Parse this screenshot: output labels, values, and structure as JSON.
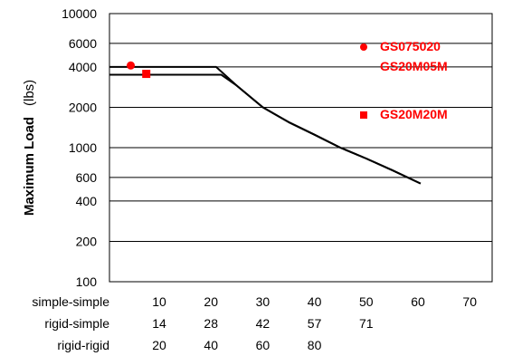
{
  "chart_data": {
    "type": "line",
    "ylabel": "Maximum Load",
    "yunit": "(lbs)",
    "yscale": "log",
    "ylim": [
      100,
      10000
    ],
    "y_ticks": [
      100,
      200,
      400,
      600,
      1000,
      2000,
      4000,
      6000,
      10000
    ],
    "y_tick_labels": [
      "100",
      "200",
      "400",
      "600",
      "1000",
      "2000",
      "4000",
      "6000",
      "10000"
    ],
    "xlim": [
      0,
      80
    ],
    "x_ticks": [
      10,
      20,
      30,
      40,
      50,
      60,
      70
    ],
    "x_scales": [
      {
        "label": "simple-simple",
        "ticks": [
          "10",
          "20",
          "30",
          "40",
          "50",
          "60",
          "70"
        ]
      },
      {
        "label": "rigid-simple",
        "ticks": [
          "14",
          "28",
          "42",
          "57",
          "71"
        ]
      },
      {
        "label": "rigid-rigid",
        "ticks": [
          "20",
          "40",
          "60",
          "80"
        ]
      }
    ],
    "series": [
      {
        "name": "GS075020 GS20M05M",
        "marker": "circle",
        "color": "#ff0000",
        "x": [
          0,
          21.0,
          25,
          30,
          35,
          40,
          45,
          50,
          55,
          60.5
        ],
        "y": [
          4000,
          4000,
          2900,
          2000,
          1550,
          1250,
          1000,
          830,
          680,
          540
        ],
        "marker_point": {
          "x": 4.5,
          "y": 4100
        }
      },
      {
        "name": "GS20M20M",
        "marker": "square",
        "color": "#ff0000",
        "x": [
          0,
          22.0,
          25,
          30,
          35,
          40,
          45,
          50,
          55,
          60.5
        ],
        "y": [
          3500,
          3500,
          2900,
          2000,
          1550,
          1250,
          1000,
          830,
          680,
          540
        ],
        "marker_point": {
          "x": 7.5,
          "y": 3550
        }
      }
    ],
    "legend": {
      "placement": "top-right",
      "entries": [
        {
          "marker": "circle",
          "color": "#ff0000",
          "lines": [
            "GS075020",
            "GS20M05M"
          ]
        },
        {
          "marker": "square",
          "color": "#ff0000",
          "lines": [
            "GS20M20M"
          ]
        }
      ]
    },
    "grid": "horizontal"
  }
}
